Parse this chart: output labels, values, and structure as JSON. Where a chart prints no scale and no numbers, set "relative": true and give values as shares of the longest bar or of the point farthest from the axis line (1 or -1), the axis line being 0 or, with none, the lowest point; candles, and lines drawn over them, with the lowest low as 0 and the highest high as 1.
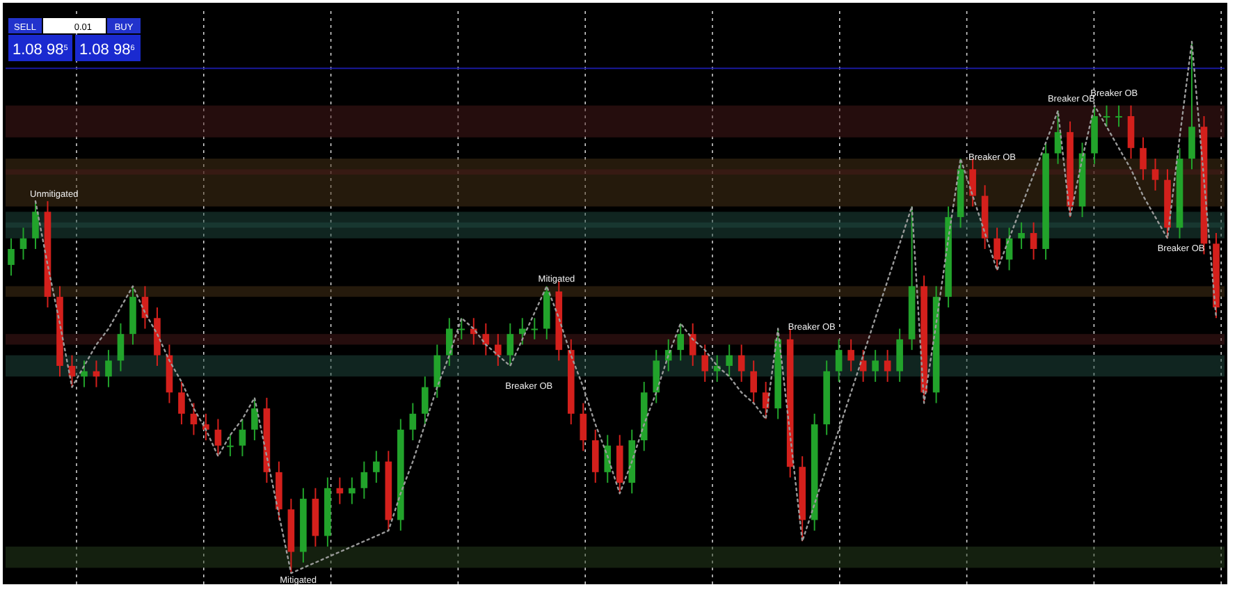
{
  "chart_data": [
    {
      "type": "candlestick",
      "relative": true,
      "categories": [
        null,
        null,
        null,
        null,
        null,
        null,
        null,
        null,
        null,
        null,
        null,
        null,
        null,
        null,
        null,
        null,
        null,
        null,
        null,
        null,
        null,
        null,
        null,
        null,
        null,
        null,
        null,
        null,
        null,
        null,
        null,
        null,
        null,
        null,
        null,
        null,
        null,
        null,
        null,
        null,
        null,
        null,
        null,
        null,
        null,
        null,
        null,
        null,
        null,
        null,
        null,
        null,
        null,
        null,
        null,
        null,
        null,
        null,
        null,
        null,
        null,
        null,
        null,
        null,
        null,
        null,
        null,
        null,
        null,
        null,
        null,
        null,
        null,
        null,
        null,
        null,
        null,
        null,
        null,
        null,
        null,
        null,
        null,
        null,
        null,
        null,
        null,
        null,
        null,
        null,
        null,
        null,
        null,
        null,
        null,
        null,
        null,
        null,
        null,
        null
      ],
      "ohlc": [
        [
          0.58,
          0.63,
          0.56,
          0.61
        ],
        [
          0.61,
          0.65,
          0.59,
          0.63
        ],
        [
          0.63,
          0.7,
          0.61,
          0.68
        ],
        [
          0.68,
          0.7,
          0.5,
          0.52
        ],
        [
          0.52,
          0.54,
          0.37,
          0.39
        ],
        [
          0.39,
          0.41,
          0.35,
          0.37
        ],
        [
          0.37,
          0.4,
          0.35,
          0.38
        ],
        [
          0.38,
          0.4,
          0.35,
          0.37
        ],
        [
          0.37,
          0.42,
          0.35,
          0.4
        ],
        [
          0.4,
          0.47,
          0.38,
          0.45
        ],
        [
          0.45,
          0.54,
          0.43,
          0.52
        ],
        [
          0.52,
          0.54,
          0.46,
          0.48
        ],
        [
          0.48,
          0.5,
          0.39,
          0.41
        ],
        [
          0.41,
          0.43,
          0.32,
          0.34
        ],
        [
          0.34,
          0.36,
          0.28,
          0.3
        ],
        [
          0.3,
          0.32,
          0.26,
          0.28
        ],
        [
          0.28,
          0.3,
          0.25,
          0.27
        ],
        [
          0.27,
          0.29,
          0.22,
          0.24
        ],
        [
          0.24,
          0.26,
          0.22,
          0.24
        ],
        [
          0.24,
          0.29,
          0.22,
          0.27
        ],
        [
          0.27,
          0.33,
          0.25,
          0.31
        ],
        [
          0.31,
          0.33,
          0.17,
          0.19
        ],
        [
          0.19,
          0.21,
          0.1,
          0.12
        ],
        [
          0.12,
          0.14,
          0.0,
          0.04
        ],
        [
          0.04,
          0.16,
          0.02,
          0.14
        ],
        [
          0.14,
          0.16,
          0.05,
          0.07
        ],
        [
          0.07,
          0.18,
          0.05,
          0.16
        ],
        [
          0.16,
          0.18,
          0.13,
          0.15
        ],
        [
          0.15,
          0.18,
          0.13,
          0.16
        ],
        [
          0.16,
          0.21,
          0.14,
          0.19
        ],
        [
          0.19,
          0.23,
          0.17,
          0.21
        ],
        [
          0.21,
          0.23,
          0.08,
          0.1
        ],
        [
          0.1,
          0.29,
          0.08,
          0.27
        ],
        [
          0.27,
          0.32,
          0.25,
          0.3
        ],
        [
          0.3,
          0.37,
          0.28,
          0.35
        ],
        [
          0.35,
          0.43,
          0.33,
          0.41
        ],
        [
          0.41,
          0.48,
          0.39,
          0.46
        ],
        [
          0.46,
          0.48,
          0.44,
          0.46
        ],
        [
          0.46,
          0.48,
          0.43,
          0.45
        ],
        [
          0.45,
          0.47,
          0.41,
          0.43
        ],
        [
          0.43,
          0.45,
          0.39,
          0.41
        ],
        [
          0.41,
          0.47,
          0.39,
          0.45
        ],
        [
          0.45,
          0.48,
          0.43,
          0.46
        ],
        [
          0.46,
          0.48,
          0.44,
          0.46
        ],
        [
          0.46,
          0.54,
          0.44,
          0.53
        ],
        [
          0.53,
          0.55,
          0.4,
          0.42
        ],
        [
          0.42,
          0.44,
          0.28,
          0.3
        ],
        [
          0.3,
          0.32,
          0.23,
          0.25
        ],
        [
          0.25,
          0.27,
          0.17,
          0.19
        ],
        [
          0.19,
          0.26,
          0.17,
          0.24
        ],
        [
          0.24,
          0.26,
          0.15,
          0.17
        ],
        [
          0.17,
          0.27,
          0.15,
          0.25
        ],
        [
          0.25,
          0.36,
          0.23,
          0.34
        ],
        [
          0.34,
          0.42,
          0.32,
          0.4
        ],
        [
          0.4,
          0.44,
          0.38,
          0.42
        ],
        [
          0.42,
          0.47,
          0.4,
          0.45
        ],
        [
          0.45,
          0.47,
          0.39,
          0.41
        ],
        [
          0.41,
          0.43,
          0.36,
          0.38
        ],
        [
          0.38,
          0.41,
          0.36,
          0.39
        ],
        [
          0.39,
          0.43,
          0.37,
          0.41
        ],
        [
          0.41,
          0.43,
          0.36,
          0.38
        ],
        [
          0.38,
          0.4,
          0.32,
          0.34
        ],
        [
          0.34,
          0.36,
          0.29,
          0.31
        ],
        [
          0.31,
          0.46,
          0.29,
          0.44
        ],
        [
          0.44,
          0.46,
          0.18,
          0.2
        ],
        [
          0.2,
          0.22,
          0.06,
          0.1
        ],
        [
          0.1,
          0.3,
          0.08,
          0.28
        ],
        [
          0.28,
          0.4,
          0.26,
          0.38
        ],
        [
          0.38,
          0.44,
          0.36,
          0.42
        ],
        [
          0.42,
          0.44,
          0.38,
          0.4
        ],
        [
          0.4,
          0.42,
          0.36,
          0.38
        ],
        [
          0.38,
          0.42,
          0.36,
          0.4
        ],
        [
          0.4,
          0.42,
          0.36,
          0.38
        ],
        [
          0.38,
          0.46,
          0.36,
          0.44
        ],
        [
          0.44,
          0.69,
          0.42,
          0.54
        ],
        [
          0.54,
          0.56,
          0.32,
          0.34
        ],
        [
          0.34,
          0.54,
          0.32,
          0.52
        ],
        [
          0.52,
          0.69,
          0.5,
          0.67
        ],
        [
          0.67,
          0.78,
          0.65,
          0.76
        ],
        [
          0.76,
          0.78,
          0.69,
          0.71
        ],
        [
          0.71,
          0.73,
          0.61,
          0.63
        ],
        [
          0.63,
          0.65,
          0.57,
          0.59
        ],
        [
          0.59,
          0.65,
          0.57,
          0.63
        ],
        [
          0.63,
          0.66,
          0.61,
          0.64
        ],
        [
          0.64,
          0.66,
          0.59,
          0.61
        ],
        [
          0.61,
          0.81,
          0.59,
          0.79
        ],
        [
          0.79,
          0.87,
          0.77,
          0.83
        ],
        [
          0.83,
          0.85,
          0.67,
          0.69
        ],
        [
          0.69,
          0.81,
          0.67,
          0.79
        ],
        [
          0.79,
          0.88,
          0.77,
          0.86
        ],
        [
          0.86,
          0.88,
          0.84,
          0.86
        ],
        [
          0.86,
          0.88,
          0.84,
          0.86
        ],
        [
          0.86,
          0.88,
          0.78,
          0.8
        ],
        [
          0.8,
          0.82,
          0.74,
          0.76
        ],
        [
          0.76,
          0.78,
          0.72,
          0.74
        ],
        [
          0.74,
          0.76,
          0.63,
          0.65
        ],
        [
          0.65,
          0.8,
          0.63,
          0.78
        ],
        [
          0.78,
          1.0,
          0.76,
          0.84
        ],
        [
          0.84,
          0.86,
          0.6,
          0.62
        ],
        [
          0.62,
          0.64,
          0.48,
          0.5
        ]
      ],
      "bands": [
        {
          "axis": "y",
          "from": 0.69,
          "to": 0.78,
          "color": "#4a3418"
        },
        {
          "axis": "y",
          "from": 0.65,
          "to": 0.68,
          "color": "#1f4a40"
        },
        {
          "axis": "y",
          "from": 0.01,
          "to": 0.05,
          "color": "#27401e"
        },
        {
          "axis": "y",
          "from": 0.52,
          "to": 0.54,
          "color": "#4a3418"
        },
        {
          "axis": "y",
          "from": 0.37,
          "to": 0.41,
          "color": "#1f4a40"
        },
        {
          "axis": "y",
          "from": 0.43,
          "to": 0.45,
          "color": "#4a1a1a"
        },
        {
          "axis": "y",
          "from": 0.75,
          "to": 0.76,
          "color": "#4a1a1a"
        },
        {
          "axis": "y",
          "from": 0.82,
          "to": 0.88,
          "color": "#4a1a1a"
        },
        {
          "axis": "y",
          "from": 0.63,
          "to": 0.66,
          "color": "#1f4a40"
        }
      ],
      "ref_lines": [
        {
          "axis": "y",
          "value": 0.95,
          "color": "#1a1a9e"
        }
      ],
      "annotations": [
        "SELL",
        "0.01",
        "BUY",
        "1.08 98$^{5}$",
        "1.08 98$^{6}$",
        {
          "text": "Unmitigated",
          "y": 0.7
        },
        {
          "text": "Mitigated",
          "y": 0.0
        },
        {
          "text": "Mitigated",
          "y": 0.54
        },
        {
          "text": "Breaker OB",
          "y": 0.37
        },
        {
          "text": "Breaker OB",
          "y": 0.45
        },
        {
          "text": "Breaker OB",
          "y": 0.77
        },
        {
          "text": "Breaker OB",
          "y": 0.88
        },
        {
          "text": "Breaker OB",
          "y": 0.89
        },
        {
          "text": "Breaker OB",
          "y": 0.63
        }
      ]
    },
    {
      "type": "line",
      "relative": true,
      "line_style": "dotted",
      "categories": [
        null,
        null,
        null,
        null,
        null,
        null,
        null,
        null,
        null,
        null,
        null,
        null,
        null,
        null,
        null,
        null,
        null,
        null,
        null,
        null,
        null,
        null,
        null,
        null,
        null,
        null,
        null,
        null,
        null,
        null,
        null,
        null,
        null,
        null,
        null,
        null,
        null,
        null,
        null,
        null,
        null,
        null,
        null,
        null,
        null,
        null,
        null,
        null,
        null,
        null,
        null,
        null,
        null,
        null,
        null,
        null,
        null,
        null,
        null,
        null,
        null,
        null,
        null,
        null,
        null,
        null,
        null,
        null,
        null,
        null,
        null,
        null,
        null,
        null,
        null,
        null,
        null,
        null,
        null,
        null,
        null,
        null,
        null,
        null,
        null,
        null,
        null,
        null,
        null,
        null,
        null,
        null,
        null,
        null,
        null,
        null,
        null,
        null,
        null,
        null
      ],
      "series": [
        {
          "color": "#9a9a9a",
          "values": [
            null,
            null,
            0.7,
            0.58,
            0.47,
            0.35,
            0.39,
            0.43,
            0.46,
            0.5,
            0.54,
            0.49,
            0.45,
            0.4,
            0.36,
            0.31,
            0.27,
            0.22,
            0.26,
            0.29,
            0.33,
            0.22,
            0.11,
            0.0,
            0.01,
            0.02,
            0.03,
            0.04,
            0.05,
            0.06,
            0.07,
            0.08,
            0.15,
            0.21,
            0.28,
            0.35,
            0.41,
            0.48,
            0.46,
            0.43,
            0.41,
            0.39,
            0.44,
            0.49,
            0.54,
            0.48,
            0.41,
            0.35,
            0.28,
            0.22,
            0.15,
            0.21,
            0.28,
            0.34,
            0.41,
            0.47,
            0.44,
            0.42,
            0.39,
            0.37,
            0.34,
            0.32,
            0.29,
            0.46,
            0.26,
            0.06,
            0.13,
            0.2,
            0.27,
            0.34,
            0.41,
            0.48,
            0.55,
            0.62,
            0.69,
            0.32,
            0.47,
            0.63,
            0.78,
            0.71,
            0.64,
            0.57,
            0.63,
            0.69,
            0.75,
            0.81,
            0.87,
            0.67,
            0.78,
            0.88,
            0.84,
            0.8,
            0.76,
            0.71,
            0.67,
            0.63,
            0.82,
            1.0,
            0.74,
            0.48
          ]
        }
      ]
    }
  ]
}
